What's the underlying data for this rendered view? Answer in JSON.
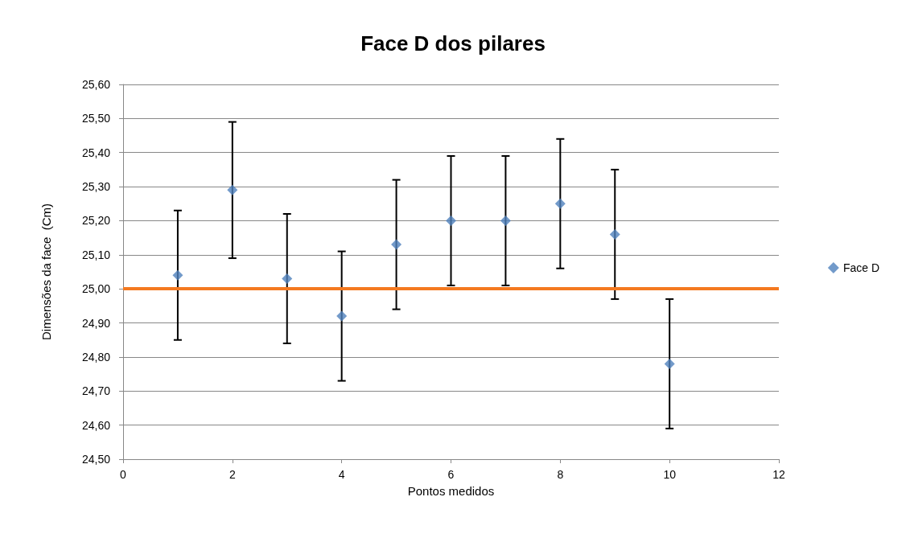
{
  "chart_data": {
    "type": "scatter",
    "title": "Face D dos pilares",
    "xlabel": "Pontos medidos",
    "ylabel": "Dimensões da face  (Cm)",
    "x": [
      1,
      2,
      3,
      4,
      5,
      6,
      7,
      8,
      9,
      10
    ],
    "series": [
      {
        "name": "Face D",
        "color": "#4f81bd",
        "values": [
          25.04,
          25.29,
          25.03,
          24.92,
          25.13,
          25.2,
          25.2,
          25.25,
          25.16,
          24.78
        ],
        "errors": [
          0.19,
          0.2,
          0.19,
          0.19,
          0.19,
          0.19,
          0.19,
          0.19,
          0.19,
          0.19
        ]
      }
    ],
    "marker": "diamond",
    "grid": "y",
    "legend": "right",
    "xlim": [
      0,
      12
    ],
    "xticks": [
      0,
      2,
      4,
      6,
      8,
      10,
      12
    ],
    "ylim": [
      24.5,
      25.6
    ],
    "yticks": [
      {
        "value": 24.5,
        "label": "24,50"
      },
      {
        "value": 24.6,
        "label": "24,60"
      },
      {
        "value": 24.7,
        "label": "24,70"
      },
      {
        "value": 24.8,
        "label": "24,80"
      },
      {
        "value": 24.9,
        "label": "24,90"
      },
      {
        "value": 25.0,
        "label": "25,00"
      },
      {
        "value": 25.1,
        "label": "25,10"
      },
      {
        "value": 25.2,
        "label": "25,20"
      },
      {
        "value": 25.3,
        "label": "25,30"
      },
      {
        "value": 25.4,
        "label": "25,40"
      },
      {
        "value": 25.5,
        "label": "25,50"
      },
      {
        "value": 25.6,
        "label": "25,60"
      }
    ],
    "ref_lines": [
      {
        "axis": "y",
        "value": 25.0,
        "color": "#f47920"
      }
    ]
  }
}
